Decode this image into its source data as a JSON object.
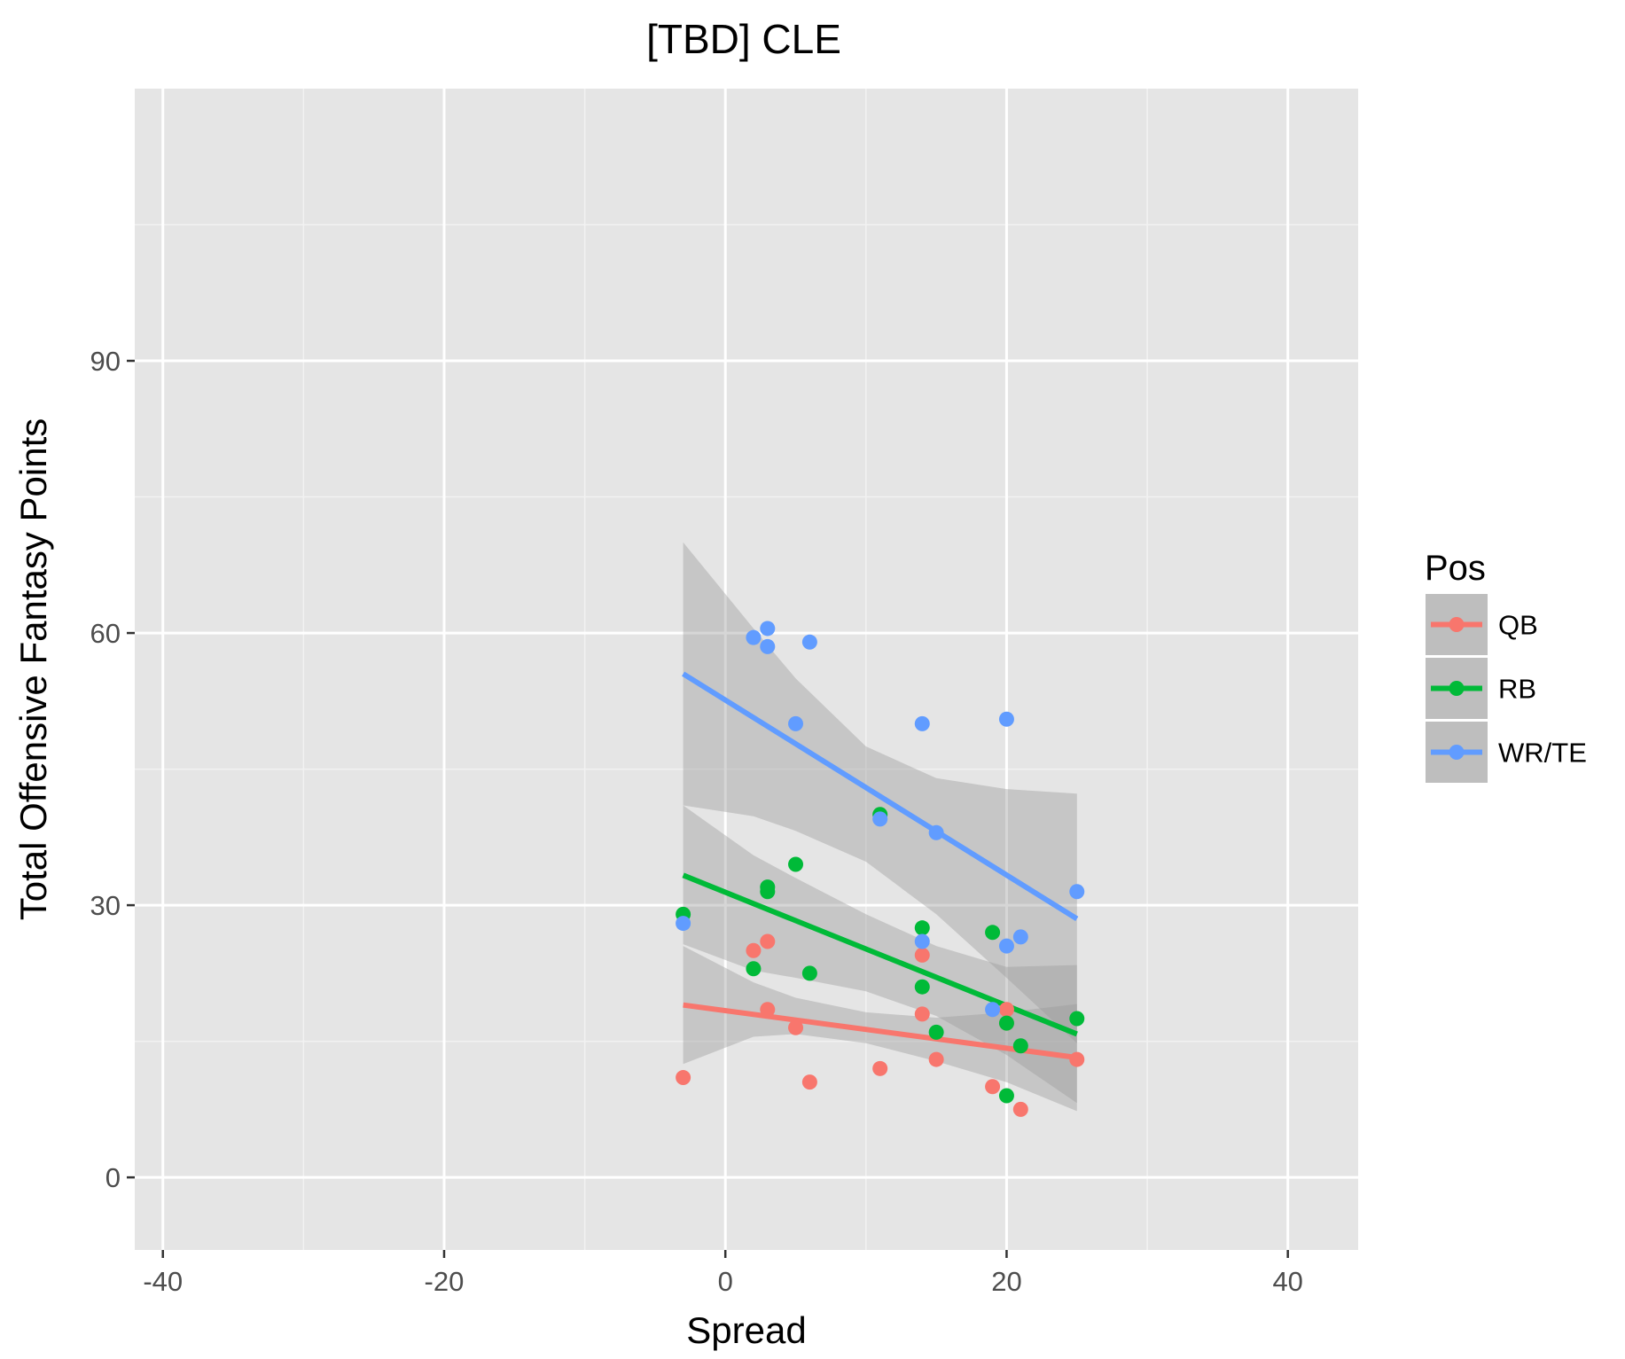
{
  "chart_data": {
    "type": "scatter",
    "title": "[TBD] CLE",
    "xlabel": "Spread",
    "ylabel": "Total Offensive Fantasy Points",
    "xlim": [
      -42,
      45
    ],
    "ylim": [
      -8,
      120
    ],
    "x_ticks": [
      -40,
      -20,
      0,
      20,
      40
    ],
    "y_ticks": [
      0,
      30,
      60,
      90
    ],
    "x_tick_labels": [
      "-40",
      "-20",
      "0",
      "20",
      "40"
    ],
    "y_tick_labels": [
      "0",
      "30",
      "60",
      "90"
    ],
    "grid": true,
    "legend": {
      "title": "Pos",
      "position": "right"
    },
    "series": [
      {
        "name": "QB",
        "color": "#F8766D",
        "points": [
          [
            -3,
            11
          ],
          [
            2,
            25
          ],
          [
            3,
            26
          ],
          [
            3,
            18.5
          ],
          [
            5,
            16.5
          ],
          [
            6,
            10.5
          ],
          [
            11,
            12
          ],
          [
            14,
            24.5
          ],
          [
            14,
            18
          ],
          [
            15,
            13
          ],
          [
            19,
            10
          ],
          [
            20,
            18.5
          ],
          [
            20,
            17
          ],
          [
            21,
            7.5
          ],
          [
            25,
            13
          ]
        ],
        "fit": {
          "x": [
            -3,
            25
          ],
          "y": [
            19,
            13.2
          ]
        },
        "band": {
          "x": [
            -3,
            2,
            5,
            10,
            15,
            20,
            25
          ],
          "lower": [
            12.5,
            15.5,
            15.8,
            14.8,
            12.8,
            10.5,
            7.3
          ],
          "upper": [
            25.5,
            21.5,
            19.8,
            18.2,
            17.6,
            18.2,
            19.1
          ]
        }
      },
      {
        "name": "RB",
        "color": "#00BA38",
        "points": [
          [
            -3,
            29
          ],
          [
            2,
            23
          ],
          [
            3,
            32
          ],
          [
            3,
            31.5
          ],
          [
            5,
            34.5
          ],
          [
            6,
            22.5
          ],
          [
            11,
            40
          ],
          [
            14,
            27.5
          ],
          [
            14,
            21
          ],
          [
            15,
            16
          ],
          [
            19,
            27
          ],
          [
            20,
            17
          ],
          [
            20,
            9
          ],
          [
            21,
            14.5
          ],
          [
            25,
            17.5
          ]
        ],
        "fit": {
          "x": [
            -3,
            25
          ],
          "y": [
            33.3,
            15.8
          ]
        },
        "band": {
          "x": [
            -3,
            2,
            5,
            10,
            15,
            20,
            25
          ],
          "lower": [
            25.7,
            22.8,
            22.0,
            20.5,
            17.8,
            13.5,
            8.2
          ],
          "upper": [
            41.0,
            35.5,
            33.0,
            29.0,
            25.5,
            23.2,
            23.4
          ]
        }
      },
      {
        "name": "WR/TE",
        "color": "#619CFF",
        "points": [
          [
            -3,
            28
          ],
          [
            2,
            59.5
          ],
          [
            3,
            60.5
          ],
          [
            3,
            58.5
          ],
          [
            5,
            50
          ],
          [
            6,
            59
          ],
          [
            11,
            39.5
          ],
          [
            14,
            50
          ],
          [
            14,
            26
          ],
          [
            15,
            38
          ],
          [
            19,
            18.5
          ],
          [
            20,
            50.5
          ],
          [
            20,
            25.5
          ],
          [
            21,
            26.5
          ],
          [
            25,
            31.5
          ]
        ],
        "fit": {
          "x": [
            -3,
            25
          ],
          "y": [
            55.5,
            28.5
          ]
        },
        "band": {
          "x": [
            -3,
            2,
            5,
            10,
            15,
            20,
            25
          ],
          "lower": [
            41.0,
            39.8,
            38.2,
            34.8,
            29.0,
            22.0,
            14.8
          ],
          "upper": [
            70.0,
            60.5,
            55.0,
            47.5,
            44.0,
            42.8,
            42.3
          ]
        }
      }
    ]
  }
}
